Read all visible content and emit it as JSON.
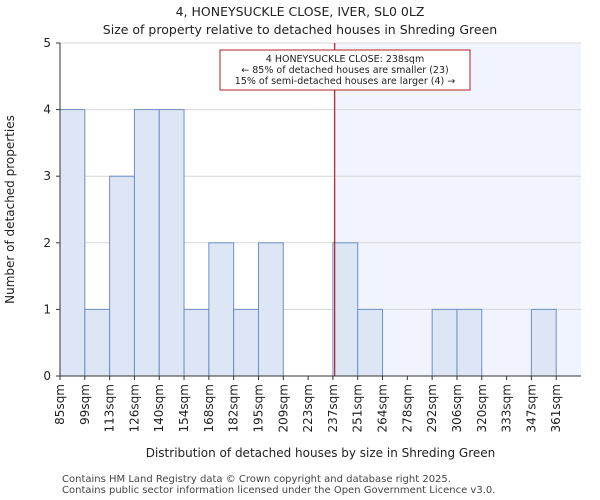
{
  "title_line1": "4, HONEYSUCKLE CLOSE, IVER, SL0 0LZ",
  "title_line2": "Size of property relative to detached houses in Shreding Green",
  "footer_line1": "Contains HM Land Registry data © Crown copyright and database right 2025.",
  "footer_line2": "Contains public sector information licensed under the Open Government Licence v3.0.",
  "colors": {
    "bar_fill": "#dce6f4",
    "bar_stroke": "#6f8fc6",
    "highlight_region": "#f1f4fc",
    "marker_line": "#b22222",
    "annotation_border": "#b22222",
    "axis": "#333333",
    "grid": "#d7d7d7"
  },
  "chart_data": {
    "type": "bar",
    "xlabel": "Distribution of detached houses by size in Shreding Green",
    "ylabel": "Number of detached properties",
    "ylim": [
      0,
      5
    ],
    "yticks": [
      0,
      1,
      2,
      3,
      4,
      5
    ],
    "grid": "horizontal",
    "categories": [
      "85sqm",
      "99sqm",
      "113sqm",
      "126sqm",
      "140sqm",
      "154sqm",
      "168sqm",
      "182sqm",
      "195sqm",
      "209sqm",
      "223sqm",
      "237sqm",
      "251sqm",
      "264sqm",
      "278sqm",
      "292sqm",
      "306sqm",
      "320sqm",
      "333sqm",
      "347sqm",
      "361sqm"
    ],
    "values": [
      4,
      1,
      3,
      4,
      4,
      1,
      2,
      1,
      2,
      0,
      0,
      2,
      1,
      0,
      0,
      1,
      1,
      0,
      0,
      1,
      0
    ],
    "marker": {
      "value_sqm": 238,
      "bin_lower_sqm": 237,
      "bin_upper_sqm": 251,
      "highlight_from_bin": 11
    },
    "annotation": {
      "line1": "4 HONEYSUCKLE CLOSE: 238sqm",
      "line2": "← 85% of detached houses are smaller (23)",
      "line3": "15% of semi-detached houses are larger (4) →"
    }
  }
}
